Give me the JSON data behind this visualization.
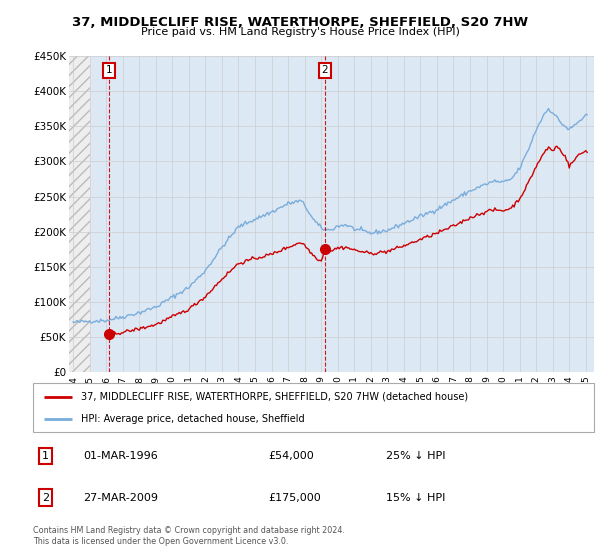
{
  "title": "37, MIDDLECLIFF RISE, WATERTHORPE, SHEFFIELD, S20 7HW",
  "subtitle": "Price paid vs. HM Land Registry's House Price Index (HPI)",
  "ylim": [
    0,
    450000
  ],
  "xlim_start": 1993.75,
  "xlim_end": 2025.5,
  "hatch_end": 1995.0,
  "blue_shade_start": 1995.0,
  "yticks": [
    0,
    50000,
    100000,
    150000,
    200000,
    250000,
    300000,
    350000,
    400000,
    450000
  ],
  "ytick_labels": [
    "£0",
    "£50K",
    "£100K",
    "£150K",
    "£200K",
    "£250K",
    "£300K",
    "£350K",
    "£400K",
    "£450K"
  ],
  "xticks": [
    1994,
    1995,
    1996,
    1997,
    1998,
    1999,
    2000,
    2001,
    2002,
    2003,
    2004,
    2005,
    2006,
    2007,
    2008,
    2009,
    2010,
    2011,
    2012,
    2013,
    2014,
    2015,
    2016,
    2017,
    2018,
    2019,
    2020,
    2021,
    2022,
    2023,
    2024,
    2025
  ],
  "sale1_x": 1996.17,
  "sale1_y": 54000,
  "sale2_x": 2009.23,
  "sale2_y": 175000,
  "sale1_date": "01-MAR-1996",
  "sale1_price": "£54,000",
  "sale1_hpi": "25% ↓ HPI",
  "sale2_date": "27-MAR-2009",
  "sale2_price": "£175,000",
  "sale2_hpi": "15% ↓ HPI",
  "red_line_color": "#cc0000",
  "blue_line_color": "#7aaddb",
  "hatch_color": "#bbbbbb",
  "hatch_bg": "#eeeeee",
  "blue_shade_color": "#dde8f5",
  "grid_color": "#cccccc",
  "legend_line1": "37, MIDDLECLIFF RISE, WATERTHORPE, SHEFFIELD, S20 7HW (detached house)",
  "legend_line2": "HPI: Average price, detached house, Sheffield",
  "footer": "Contains HM Land Registry data © Crown copyright and database right 2024.\nThis data is licensed under the Open Government Licence v3.0."
}
